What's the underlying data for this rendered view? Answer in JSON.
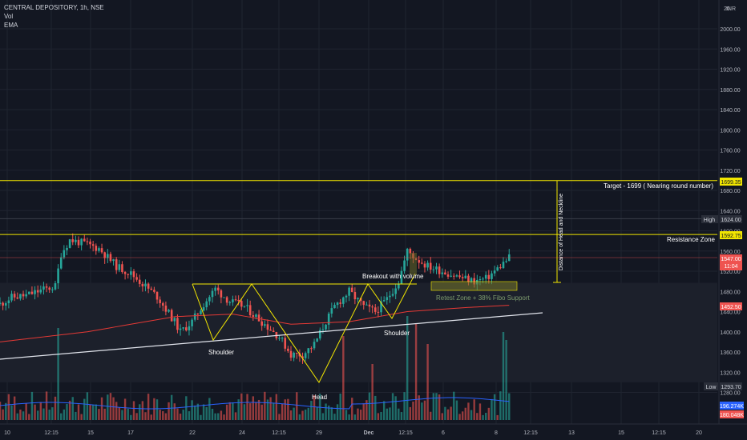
{
  "legend": {
    "symbol_line": "CENTRAL DEPOSITORY, 1h, NSE",
    "vol_label": "Vol",
    "ema_label": "EMA"
  },
  "currency_label": "INR",
  "price_axis": {
    "ticks": [
      "2000.00",
      "1960.00",
      "1920.00",
      "1880.00",
      "1840.00",
      "1800.00",
      "1760.00",
      "1720.00",
      "1680.00",
      "1640.00",
      "1600.00",
      "1560.00",
      "1520.00",
      "1480.00",
      "1440.00",
      "1400.00",
      "1360.00",
      "1320.00",
      "1280.00"
    ],
    "top_tick": "20",
    "range": [
      1275,
      2025
    ]
  },
  "price_badges": {
    "target": "1699.35",
    "high_label": "High",
    "high": "1624.00",
    "resistance": "1592.75",
    "last": "1547.00",
    "countdown": "11:04",
    "ema": "1452.50",
    "low_label": "Low",
    "low": "1293.70",
    "vol1": "196.274K",
    "vol2": "180.048K"
  },
  "time_axis": [
    "10",
    "12:15",
    "15",
    "17",
    "22",
    "24",
    "12:15",
    "29",
    "Dec",
    "12:15",
    "6",
    "8",
    "12:15",
    "13",
    "15",
    "12:15",
    "20"
  ],
  "annotations": {
    "target": "Target - 1699 ( Nearing round number)",
    "resistance": "Resistance Zone",
    "distance": "Distance of Head and Neckline",
    "breakout": "Breakout with volume",
    "retest": "Retest Zone + 38% Fibo Support",
    "left_shoulder": "Shoulder",
    "head": "Head",
    "right_shoulder": "Shoulder"
  },
  "colors": {
    "background": "#131722",
    "grid": "#1f2430",
    "up": "#26a69a",
    "down": "#ef5350",
    "ema": "#e53935",
    "level": "#f2e600",
    "trendline": "#e0e3eb",
    "retest": "#8a8a2a",
    "vol_ma": "#2962ff",
    "text": "#d1d4dc",
    "axis_text": "#b2b5be"
  },
  "chart_data": {
    "type": "candlestick",
    "symbol": "CENTRAL DEPOSITORY",
    "interval": "1h",
    "exchange": "NSE",
    "levels": {
      "target": 1699.35,
      "resistance": 1592.75,
      "high": 1624.0,
      "low": 1293.7,
      "last": 1547.0,
      "ema": 1452.5
    },
    "close_path": [
      {
        "t": 0,
        "p": 1455
      },
      {
        "t": 4,
        "p": 1468
      },
      {
        "t": 9,
        "p": 1472
      },
      {
        "t": 14,
        "p": 1482
      },
      {
        "t": 19,
        "p": 1490
      },
      {
        "t": 21,
        "p": 1555
      },
      {
        "t": 24,
        "p": 1582
      },
      {
        "t": 29,
        "p": 1575
      },
      {
        "t": 34,
        "p": 1565
      },
      {
        "t": 40,
        "p": 1530
      },
      {
        "t": 45,
        "p": 1515
      },
      {
        "t": 50,
        "p": 1490
      },
      {
        "t": 54,
        "p": 1470
      },
      {
        "t": 60,
        "p": 1420
      },
      {
        "t": 62,
        "p": 1400
      },
      {
        "t": 66,
        "p": 1420
      },
      {
        "t": 70,
        "p": 1455
      },
      {
        "t": 74,
        "p": 1485
      },
      {
        "t": 79,
        "p": 1460
      },
      {
        "t": 84,
        "p": 1450
      },
      {
        "t": 90,
        "p": 1420
      },
      {
        "t": 96,
        "p": 1390
      },
      {
        "t": 100,
        "p": 1355
      },
      {
        "t": 104,
        "p": 1355
      },
      {
        "t": 108,
        "p": 1375
      },
      {
        "t": 112,
        "p": 1420
      },
      {
        "t": 115,
        "p": 1450
      },
      {
        "t": 120,
        "p": 1480
      },
      {
        "t": 125,
        "p": 1450
      },
      {
        "t": 129,
        "p": 1440
      },
      {
        "t": 133,
        "p": 1465
      },
      {
        "t": 137,
        "p": 1500
      },
      {
        "t": 140,
        "p": 1560
      },
      {
        "t": 143,
        "p": 1545
      },
      {
        "t": 147,
        "p": 1530
      },
      {
        "t": 152,
        "p": 1520
      },
      {
        "t": 157,
        "p": 1510
      },
      {
        "t": 163,
        "p": 1500
      },
      {
        "t": 167,
        "p": 1505
      },
      {
        "t": 171,
        "p": 1525
      },
      {
        "t": 175,
        "p": 1547
      }
    ],
    "ema_path": [
      {
        "t": 0,
        "p": 1380
      },
      {
        "t": 30,
        "p": 1400
      },
      {
        "t": 60,
        "p": 1430
      },
      {
        "t": 80,
        "p": 1435
      },
      {
        "t": 100,
        "p": 1415
      },
      {
        "t": 120,
        "p": 1420
      },
      {
        "t": 140,
        "p": 1440
      },
      {
        "t": 160,
        "p": 1448
      },
      {
        "t": 175,
        "p": 1452.5
      }
    ]
  }
}
